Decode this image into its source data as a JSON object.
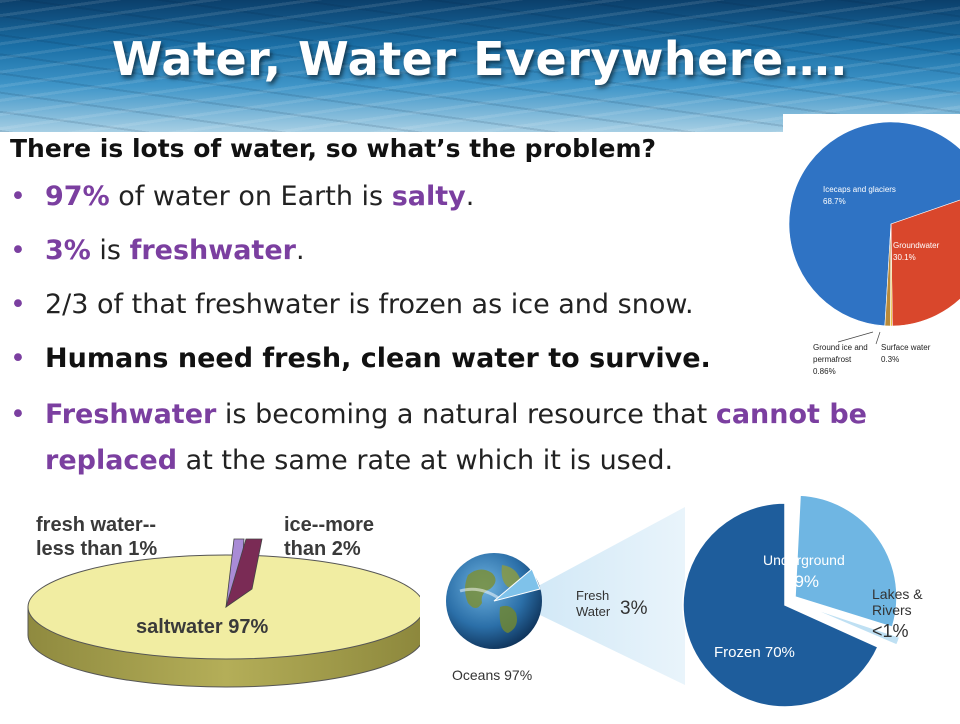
{
  "slide": {
    "title": "Water, Water Everywhere….",
    "subtitle": "There is lots of water, so what’s the problem?",
    "bullets": [
      {
        "a": "97%",
        "b": " of water on Earth is ",
        "c": "salty",
        "d": "."
      },
      {
        "a": "3%",
        "b": " is ",
        "c": "freshwater",
        "d": "."
      },
      {
        "text": "2/3 of that freshwater is frozen as ice and snow."
      },
      {
        "text": "Humans need fresh, clean water to survive."
      },
      {
        "a": "Freshwater",
        "b": " is becoming a natural resource that ",
        "c": "cannot be replaced",
        "d": " at the same rate at which it is used."
      }
    ],
    "bullet_symbol": "•"
  },
  "chart_data": [
    {
      "type": "pie",
      "categories": [
        "Icecaps and glaciers",
        "Groundwater",
        "Surface water",
        "Ground ice and permafrost"
      ],
      "values": [
        68.7,
        30.1,
        0.3,
        0.86
      ],
      "value_labels": [
        "68.7%",
        "30.1%",
        "0.3%",
        "0.86%"
      ],
      "label_lines": [
        [
          "Icecaps and glaciers",
          "68.7%"
        ],
        [
          "Groundwater",
          "30.1%"
        ],
        [
          "Surface water",
          "0.3%"
        ],
        [
          "Ground ice and",
          "permafrost",
          "0.86%"
        ]
      ],
      "colors": [
        "#2f73c4",
        "#d9472c",
        "#e8c23a",
        "#b88a3a"
      ]
    },
    {
      "type": "pie",
      "categories": [
        "saltwater",
        "fresh water",
        "ice"
      ],
      "labels": [
        "saltwater 97%",
        "fresh water-- less than 1%",
        "ice--more than 2%"
      ],
      "label_lines": [
        [
          "saltwater 97%"
        ],
        [
          "fresh water--",
          "less than 1%"
        ],
        [
          "ice--more",
          "than 2%"
        ]
      ],
      "colors": [
        "#f1eda2",
        "#a98bd6",
        "#7a2b55"
      ]
    },
    {
      "type": "pie",
      "outer": {
        "labels": [
          "Oceans 97%",
          "Fresh Water 3%"
        ]
      },
      "categories": [
        "Frozen",
        "Underground",
        "Lakes & Rivers"
      ],
      "value_labels": [
        "70%",
        "29%",
        "<1%"
      ],
      "label_lines": [
        [
          "Frozen 70%"
        ],
        [
          "Underground",
          "29%"
        ],
        [
          "Lakes &",
          "Rivers",
          "<1%"
        ],
        [
          "Oceans 97%"
        ],
        [
          "Fresh",
          "Water"
        ],
        [
          "3%"
        ]
      ],
      "colors": [
        "#1e5d9c",
        "#6fb6e3",
        "#bfe0f3"
      ]
    }
  ]
}
